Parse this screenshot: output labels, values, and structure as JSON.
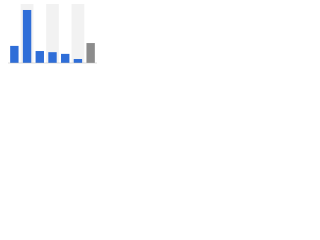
{
  "chart_data": {
    "type": "bar",
    "categories": [
      null,
      null,
      null,
      null,
      null,
      null,
      null
    ],
    "values": [
      30,
      93,
      21,
      19,
      16,
      7,
      35
    ],
    "colors": [
      "#2f6ed8",
      "#2f6ed8",
      "#2f6ed8",
      "#2f6ed8",
      "#2f6ed8",
      "#2f6ed8",
      "#8c8c8c"
    ],
    "ylim": [
      0,
      100
    ],
    "column_shading": true
  }
}
